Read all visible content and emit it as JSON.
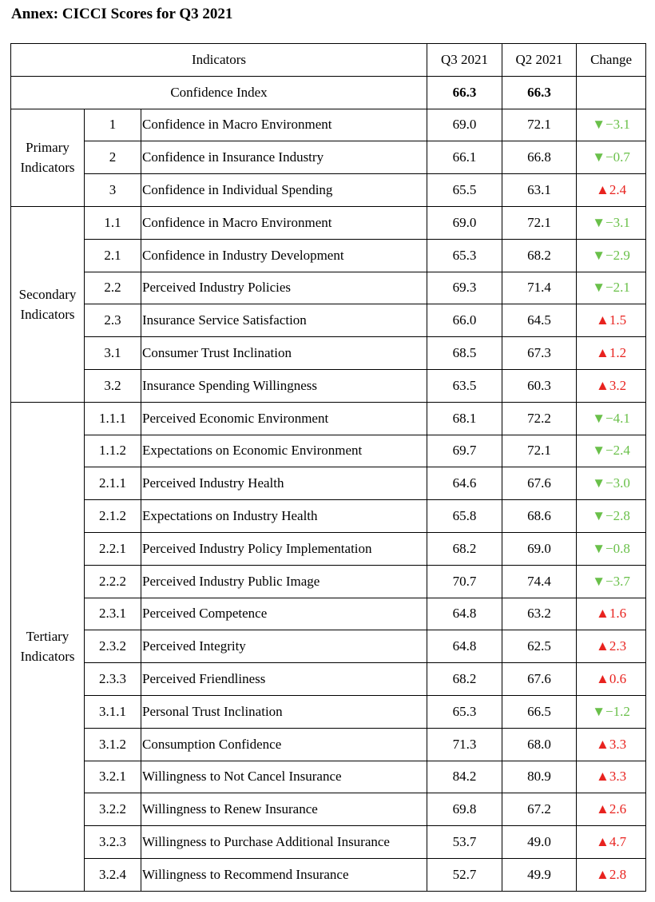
{
  "title": "Annex: CICCI Scores for Q3 2021",
  "header": {
    "indicators": "Indicators",
    "q3": "Q3 2021",
    "q2": "Q2 2021",
    "change": "Change"
  },
  "confidence_index": {
    "label": "Confidence Index",
    "q3": "66.3",
    "q2": "66.3"
  },
  "colors": {
    "down": "#6ac04a",
    "up": "#e8231f"
  },
  "arrows": {
    "down": "▼",
    "up": "▲"
  },
  "groups": [
    {
      "name_line1": "Primary",
      "name_line2": "Indicators",
      "rows": [
        {
          "code": "1",
          "name": "Confidence in Macro Environment",
          "q3": "69.0",
          "q2": "72.1",
          "dir": "down",
          "change": "−3.1"
        },
        {
          "code": "2",
          "name": "Confidence in Insurance Industry",
          "q3": "66.1",
          "q2": "66.8",
          "dir": "down",
          "change": "−0.7"
        },
        {
          "code": "3",
          "name": "Confidence in Individual Spending",
          "q3": "65.5",
          "q2": "63.1",
          "dir": "up",
          "change": "2.4"
        }
      ]
    },
    {
      "name_line1": "Secondary",
      "name_line2": "Indicators",
      "rows": [
        {
          "code": "1.1",
          "name": "Confidence in Macro Environment",
          "q3": "69.0",
          "q2": "72.1",
          "dir": "down",
          "change": "−3.1"
        },
        {
          "code": "2.1",
          "name": "Confidence in Industry Development",
          "q3": "65.3",
          "q2": "68.2",
          "dir": "down",
          "change": "−2.9"
        },
        {
          "code": "2.2",
          "name": "Perceived Industry Policies",
          "q3": "69.3",
          "q2": "71.4",
          "dir": "down",
          "change": "−2.1"
        },
        {
          "code": "2.3",
          "name": "Insurance Service Satisfaction",
          "q3": "66.0",
          "q2": "64.5",
          "dir": "up",
          "change": "1.5"
        },
        {
          "code": "3.1",
          "name": "Consumer Trust Inclination",
          "q3": "68.5",
          "q2": "67.3",
          "dir": "up",
          "change": "1.2"
        },
        {
          "code": "3.2",
          "name": "Insurance Spending Willingness",
          "q3": "63.5",
          "q2": "60.3",
          "dir": "up",
          "change": "3.2"
        }
      ]
    },
    {
      "name_line1": "Tertiary",
      "name_line2": "Indicators",
      "rows": [
        {
          "code": "1.1.1",
          "name": "Perceived Economic Environment",
          "q3": "68.1",
          "q2": "72.2",
          "dir": "down",
          "change": "−4.1"
        },
        {
          "code": "1.1.2",
          "name": "Expectations on Economic Environment",
          "q3": "69.7",
          "q2": "72.1",
          "dir": "down",
          "change": "−2.4"
        },
        {
          "code": "2.1.1",
          "name": "Perceived Industry Health",
          "q3": "64.6",
          "q2": "67.6",
          "dir": "down",
          "change": "−3.0"
        },
        {
          "code": "2.1.2",
          "name": "Expectations on Industry Health",
          "q3": "65.8",
          "q2": "68.6",
          "dir": "down",
          "change": "−2.8"
        },
        {
          "code": "2.2.1",
          "name": "Perceived Industry Policy Implementation",
          "q3": "68.2",
          "q2": "69.0",
          "dir": "down",
          "change": "−0.8"
        },
        {
          "code": "2.2.2",
          "name": "Perceived Industry Public Image",
          "q3": "70.7",
          "q2": "74.4",
          "dir": "down",
          "change": "−3.7"
        },
        {
          "code": "2.3.1",
          "name": "Perceived Competence",
          "q3": "64.8",
          "q2": "63.2",
          "dir": "up",
          "change": "1.6"
        },
        {
          "code": "2.3.2",
          "name": "Perceived Integrity",
          "q3": "64.8",
          "q2": "62.5",
          "dir": "up",
          "change": "2.3"
        },
        {
          "code": "2.3.3",
          "name": "Perceived Friendliness",
          "q3": "68.2",
          "q2": "67.6",
          "dir": "up",
          "change": "0.6"
        },
        {
          "code": "3.1.1",
          "name": "Personal Trust Inclination",
          "q3": "65.3",
          "q2": "66.5",
          "dir": "down",
          "change": "−1.2"
        },
        {
          "code": "3.1.2",
          "name": "Consumption Confidence",
          "q3": "71.3",
          "q2": "68.0",
          "dir": "up",
          "change": "3.3"
        },
        {
          "code": "3.2.1",
          "name": "Willingness to Not Cancel Insurance",
          "q3": "84.2",
          "q2": "80.9",
          "dir": "up",
          "change": "3.3"
        },
        {
          "code": "3.2.2",
          "name": "Willingness to Renew Insurance",
          "q3": "69.8",
          "q2": "67.2",
          "dir": "up",
          "change": "2.6"
        },
        {
          "code": "3.2.3",
          "name": "Willingness to Purchase Additional Insurance",
          "q3": "53.7",
          "q2": "49.0",
          "dir": "up",
          "change": "4.7"
        },
        {
          "code": "3.2.4",
          "name": "Willingness to Recommend Insurance",
          "q3": "52.7",
          "q2": "49.9",
          "dir": "up",
          "change": "2.8"
        }
      ]
    }
  ]
}
